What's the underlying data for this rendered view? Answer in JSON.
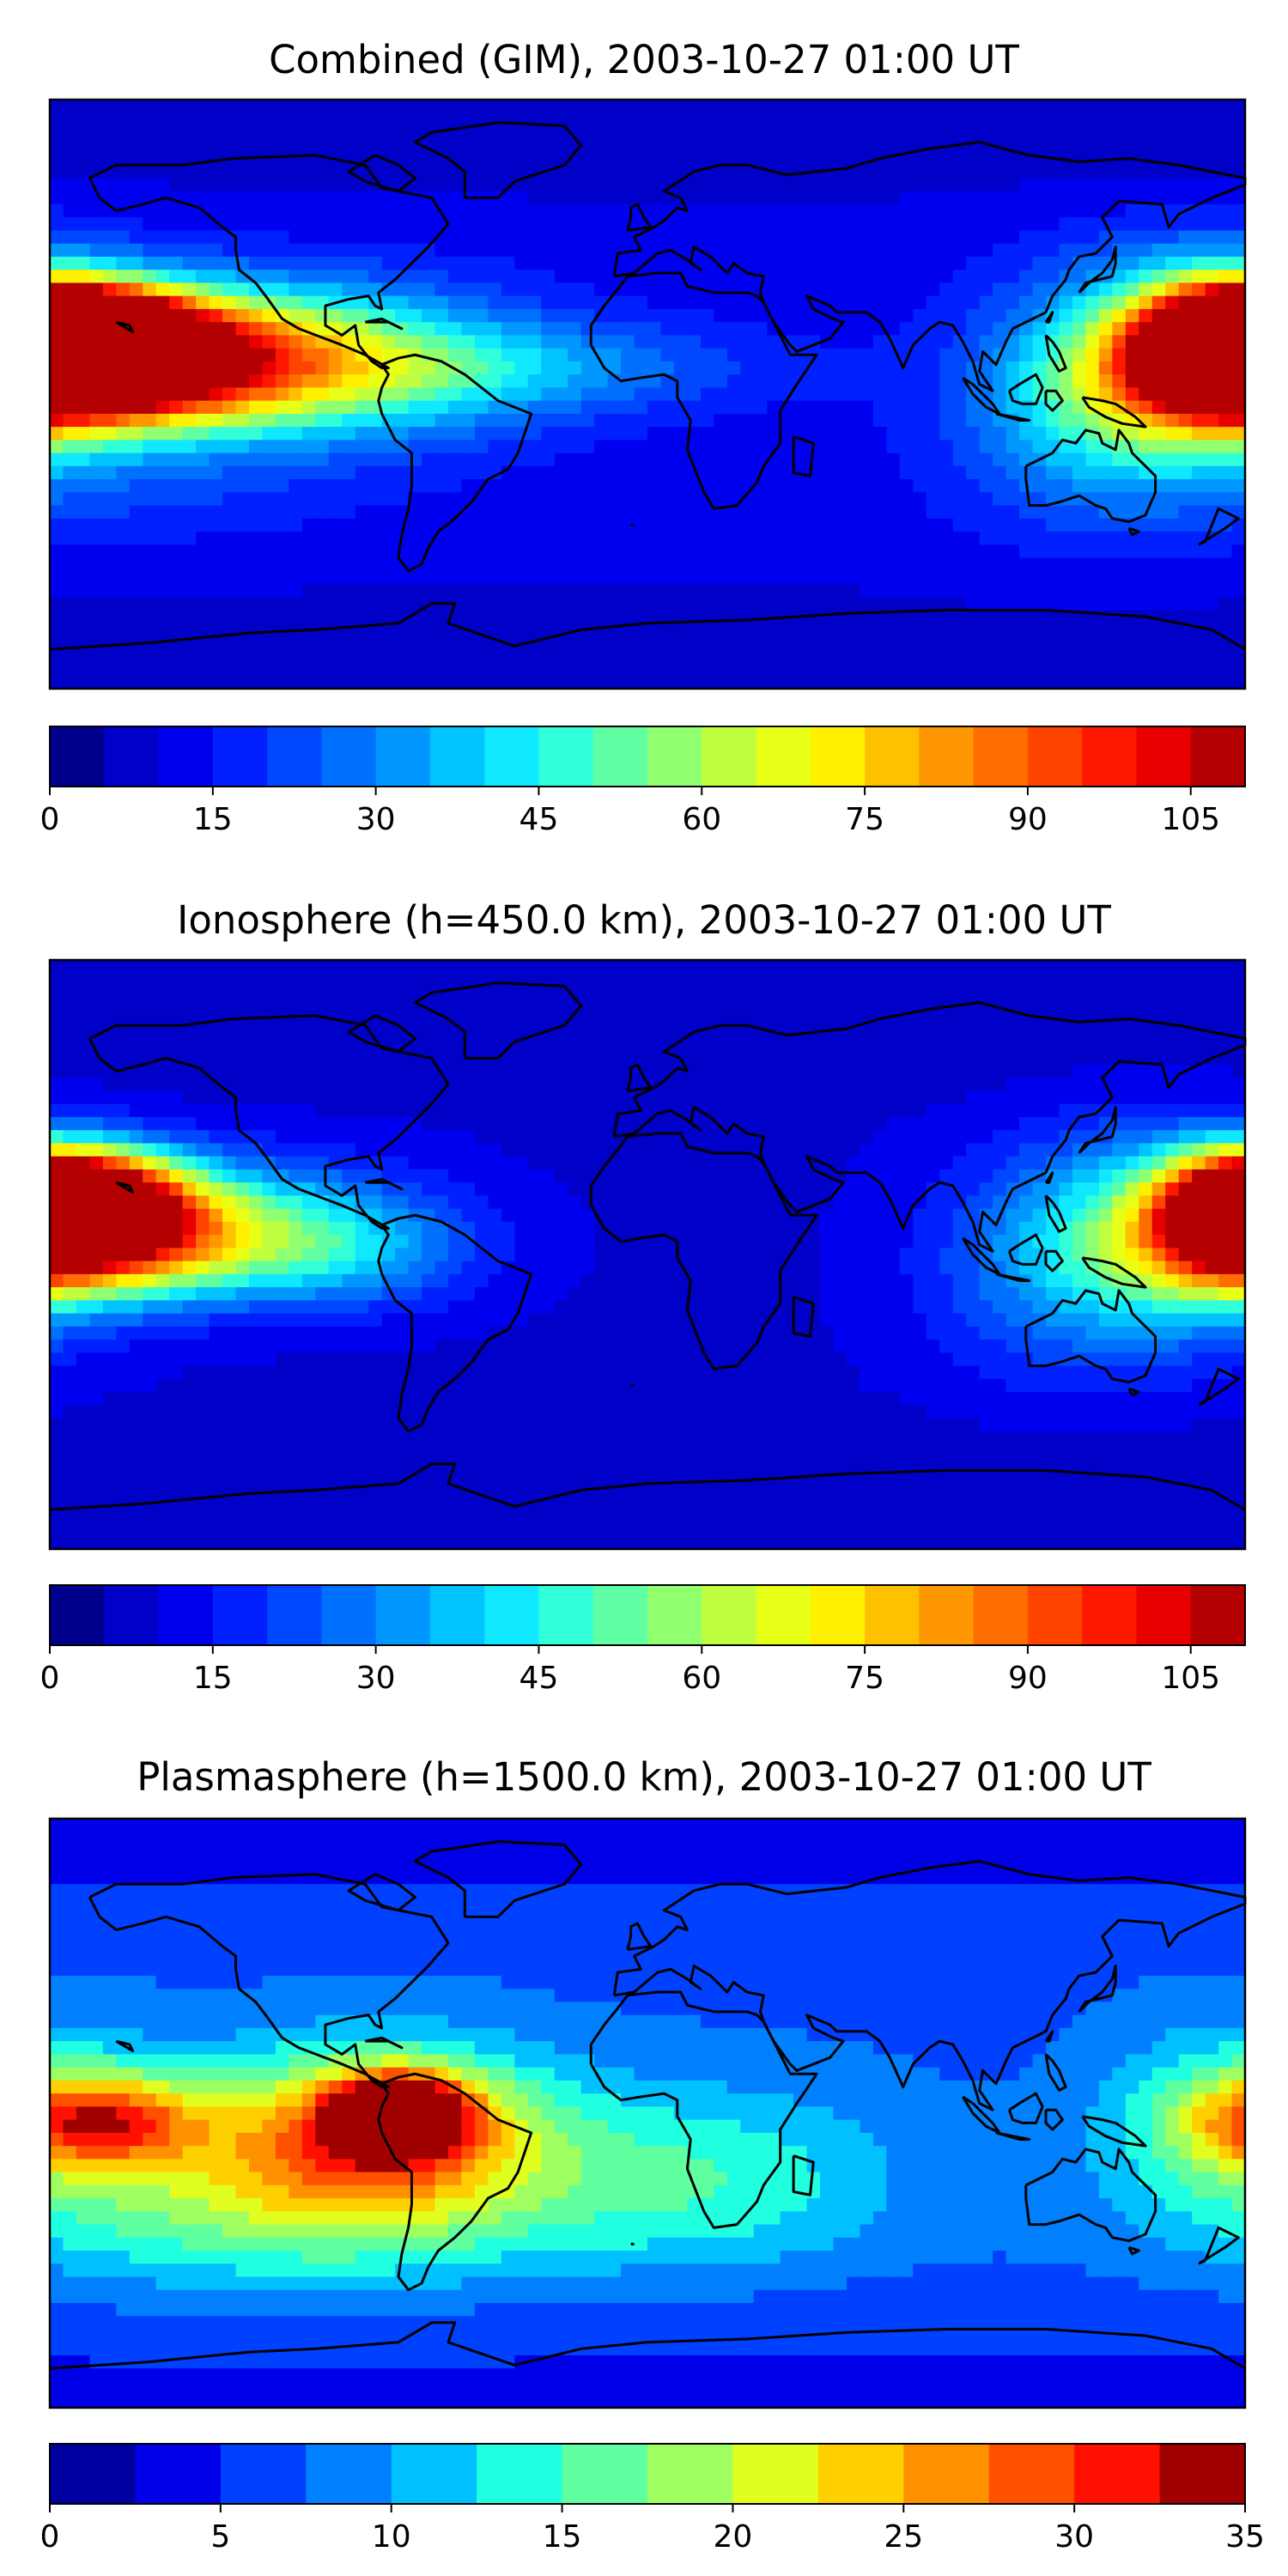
{
  "chart_data": [
    {
      "type": "heatmap",
      "title": "Combined (GIM), 2003-10-27 01:00 UT",
      "colorbar": {
        "levels": [
          0,
          5,
          10,
          15,
          20,
          25,
          30,
          35,
          40,
          45,
          50,
          55,
          60,
          65,
          70,
          75,
          80,
          85,
          90,
          95,
          100,
          105,
          110
        ],
        "colors": [
          "#00008c",
          "#0000c8",
          "#0000f0",
          "#0020ff",
          "#0048ff",
          "#0070ff",
          "#0098ff",
          "#00c4ff",
          "#10e8ff",
          "#30ffd8",
          "#60ffa4",
          "#90ff70",
          "#c0ff40",
          "#e8ff18",
          "#fff000",
          "#ffc000",
          "#ff9800",
          "#ff6c00",
          "#ff4400",
          "#ff1800",
          "#e80000",
          "#b40000"
        ],
        "ticks": [
          0,
          15,
          30,
          45,
          60,
          75,
          90,
          105
        ]
      },
      "blobs": [
        {
          "lon": -168,
          "lat": 20,
          "value": 108,
          "sx": 22,
          "sy": 9
        },
        {
          "lon": -165,
          "lat": 7,
          "value": 96,
          "sx": 30,
          "sy": 12
        },
        {
          "lon": -130,
          "lat": 12,
          "value": 55,
          "sx": 40,
          "sy": 14
        },
        {
          "lon": -100,
          "lat": 8,
          "value": 40,
          "sx": 45,
          "sy": 18
        },
        {
          "lon": -40,
          "lat": 8,
          "value": 30,
          "sx": 50,
          "sy": 10
        },
        {
          "lon": 175,
          "lat": 15,
          "value": 90,
          "sx": 18,
          "sy": 12
        },
        {
          "lon": 160,
          "lat": 5,
          "value": 55,
          "sx": 28,
          "sy": 20
        },
        {
          "lon": 130,
          "lat": -5,
          "value": 30,
          "sx": 30,
          "sy": 25
        },
        {
          "lon": 170,
          "lat": 40,
          "value": 20,
          "sx": 30,
          "sy": 12
        },
        {
          "lon": -150,
          "lat": -30,
          "value": 18,
          "sx": 40,
          "sy": 12
        }
      ],
      "baseline": 12
    },
    {
      "type": "heatmap",
      "title": "Ionosphere  (h=450.0 km), 2003-10-27 01:00 UT",
      "colorbar": {
        "levels": [
          0,
          5,
          10,
          15,
          20,
          25,
          30,
          35,
          40,
          45,
          50,
          55,
          60,
          65,
          70,
          75,
          80,
          85,
          90,
          95,
          100,
          105,
          110
        ],
        "colors": [
          "#00008c",
          "#0000c8",
          "#0000f0",
          "#0020ff",
          "#0048ff",
          "#0070ff",
          "#0098ff",
          "#00c4ff",
          "#10e8ff",
          "#30ffd8",
          "#60ffa4",
          "#90ff70",
          "#c0ff40",
          "#e8ff18",
          "#fff000",
          "#ffc000",
          "#ff9800",
          "#ff6c00",
          "#ff4400",
          "#ff1800",
          "#e80000",
          "#b40000"
        ],
        "ticks": [
          0,
          15,
          30,
          45,
          60,
          75,
          90,
          105
        ]
      },
      "blobs": [
        {
          "lon": -168,
          "lat": 18,
          "value": 90,
          "sx": 20,
          "sy": 10
        },
        {
          "lon": -165,
          "lat": 4,
          "value": 72,
          "sx": 28,
          "sy": 12
        },
        {
          "lon": -130,
          "lat": 10,
          "value": 40,
          "sx": 40,
          "sy": 14
        },
        {
          "lon": -95,
          "lat": 0,
          "value": 30,
          "sx": 30,
          "sy": 12
        },
        {
          "lon": 178,
          "lat": 12,
          "value": 75,
          "sx": 15,
          "sy": 12
        },
        {
          "lon": 155,
          "lat": 5,
          "value": 45,
          "sx": 30,
          "sy": 22
        },
        {
          "lon": 120,
          "lat": -5,
          "value": 22,
          "sx": 30,
          "sy": 25
        }
      ],
      "baseline": 9
    },
    {
      "type": "heatmap",
      "title": "Plasmasphere (h=1500.0 km), 2003-10-27 01:00 UT",
      "colorbar": {
        "levels": [
          0,
          2.5,
          5,
          7.5,
          10,
          12.5,
          15,
          17.5,
          20,
          22.5,
          25,
          27.5,
          30,
          32.5,
          35
        ],
        "colors": [
          "#0000a0",
          "#0000e8",
          "#0040ff",
          "#0080ff",
          "#00c0ff",
          "#20ffe0",
          "#60ffa0",
          "#a0ff60",
          "#e0ff20",
          "#ffd000",
          "#ff9000",
          "#ff5000",
          "#ff1000",
          "#a00000"
        ],
        "ticks": [
          0,
          5,
          10,
          15,
          20,
          25,
          30,
          35
        ]
      },
      "blobs": [
        {
          "lon": -75,
          "lat": 0,
          "value": 33,
          "sx": 14,
          "sy": 8
        },
        {
          "lon": -80,
          "lat": -5,
          "value": 24,
          "sx": 35,
          "sy": 18
        },
        {
          "lon": -165,
          "lat": -2,
          "value": 24,
          "sx": 22,
          "sy": 10
        },
        {
          "lon": -110,
          "lat": -25,
          "value": 18,
          "sx": 60,
          "sy": 20
        },
        {
          "lon": 20,
          "lat": -20,
          "value": 14,
          "sx": 40,
          "sy": 20
        },
        {
          "lon": 175,
          "lat": 0,
          "value": 14,
          "sx": 25,
          "sy": 20
        }
      ],
      "baseline": 7
    }
  ]
}
